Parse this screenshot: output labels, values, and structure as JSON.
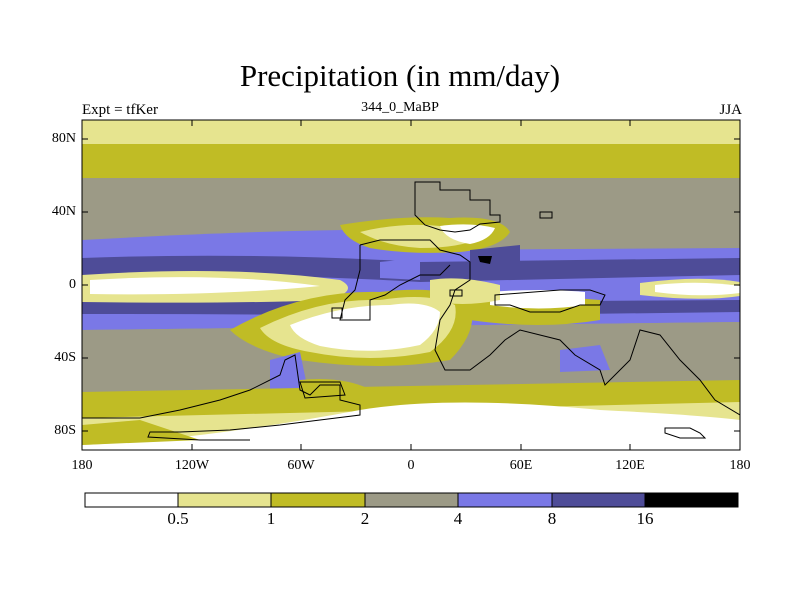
{
  "title": "Precipitation (in mm/day)",
  "subtitle_left": "Expt = tfKer",
  "subtitle_center": "344_0_MaBP",
  "subtitle_right": "JJA",
  "lat_labels": [
    "80N",
    "40N",
    "0",
    "40S",
    "80S"
  ],
  "lon_labels": [
    "180",
    "120W",
    "60W",
    "0",
    "60E",
    "120E",
    "180"
  ],
  "colorbar": {
    "labels": [
      "0.5",
      "1",
      "2",
      "4",
      "8",
      "16"
    ],
    "colors": [
      "#ffffff",
      "#e6e48f",
      "#c0bc25",
      "#9c9a86",
      "#7a78e6",
      "#4e4c98",
      "#000000"
    ]
  }
}
